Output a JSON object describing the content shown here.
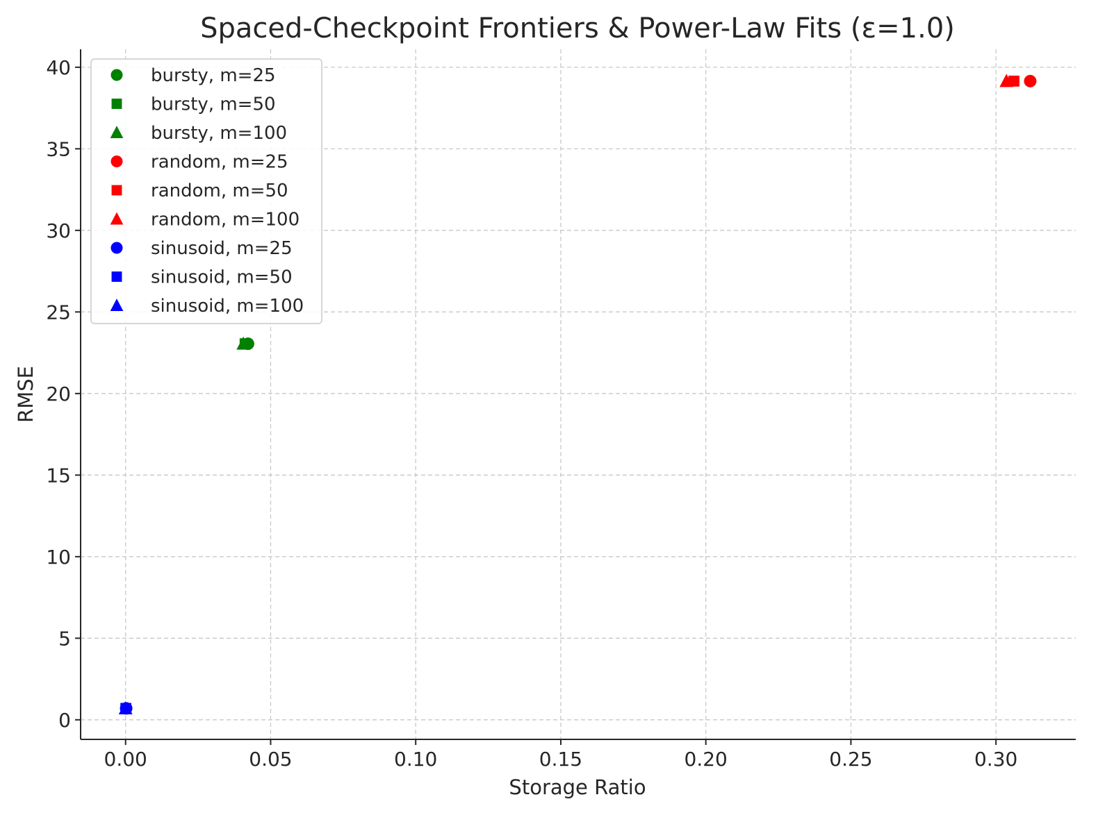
{
  "chart_data": {
    "type": "scatter",
    "title": "Spaced-Checkpoint Frontiers & Power-Law Fits (ε=1.0)",
    "xlabel": "Storage Ratio",
    "ylabel": "RMSE",
    "xlim": [
      -0.0155,
      0.3275
    ],
    "ylim": [
      -1.2,
      41.1
    ],
    "xticks": [
      0.0,
      0.05,
      0.1,
      0.15,
      0.2,
      0.25,
      0.3
    ],
    "xtick_labels": [
      "0.00",
      "0.05",
      "0.10",
      "0.15",
      "0.20",
      "0.25",
      "0.30"
    ],
    "yticks": [
      0,
      5,
      10,
      15,
      20,
      25,
      30,
      35,
      40
    ],
    "ytick_labels": [
      "0",
      "5",
      "10",
      "15",
      "20",
      "25",
      "30",
      "35",
      "40"
    ],
    "grid": true,
    "legend_position": "upper-left",
    "series": [
      {
        "name": "bursty, m=25",
        "color": "#008000",
        "marker": "circle",
        "points": [
          {
            "x": 0.0422,
            "y": 23.05
          }
        ]
      },
      {
        "name": "bursty, m=50",
        "color": "#008000",
        "marker": "square",
        "points": [
          {
            "x": 0.0412,
            "y": 23.05
          }
        ]
      },
      {
        "name": "bursty, m=100",
        "color": "#008000",
        "marker": "triangle",
        "points": [
          {
            "x": 0.0406,
            "y": 23.05
          }
        ]
      },
      {
        "name": "random, m=25",
        "color": "#ff0000",
        "marker": "circle",
        "points": [
          {
            "x": 0.3118,
            "y": 39.15
          }
        ]
      },
      {
        "name": "random, m=50",
        "color": "#ff0000",
        "marker": "square",
        "points": [
          {
            "x": 0.3062,
            "y": 39.15
          }
        ]
      },
      {
        "name": "random, m=100",
        "color": "#ff0000",
        "marker": "triangle",
        "points": [
          {
            "x": 0.3036,
            "y": 39.15
          }
        ]
      },
      {
        "name": "sinusoid, m=25",
        "color": "#0000ff",
        "marker": "circle",
        "points": [
          {
            "x": 0.0002,
            "y": 0.7
          }
        ]
      },
      {
        "name": "sinusoid, m=50",
        "color": "#0000ff",
        "marker": "square",
        "points": [
          {
            "x": 0.0001,
            "y": 0.7
          }
        ]
      },
      {
        "name": "sinusoid, m=100",
        "color": "#0000ff",
        "marker": "triangle",
        "points": [
          {
            "x": 0.0,
            "y": 0.7
          }
        ]
      }
    ]
  }
}
